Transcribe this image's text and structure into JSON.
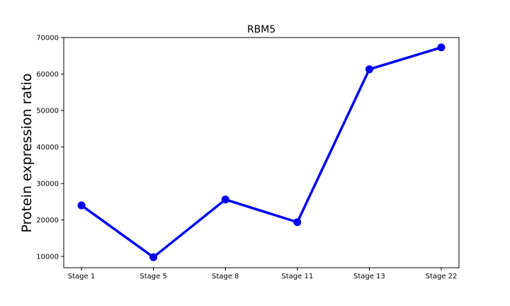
{
  "chart_data": {
    "type": "line",
    "title": "RBM5",
    "xlabel": "",
    "ylabel": "Protein expression ratio",
    "categories": [
      "Stage 1",
      "Stage 5",
      "Stage 8",
      "Stage 11",
      "Stage 13",
      "Stage 22"
    ],
    "series": [
      {
        "values": [
          24000,
          9800,
          25600,
          19400,
          61300,
          67300
        ],
        "color": "#0000ee"
      }
    ],
    "yticks": [
      10000,
      20000,
      30000,
      40000,
      50000,
      60000,
      70000
    ],
    "ylim": [
      6900,
      70000
    ],
    "grid": false
  }
}
